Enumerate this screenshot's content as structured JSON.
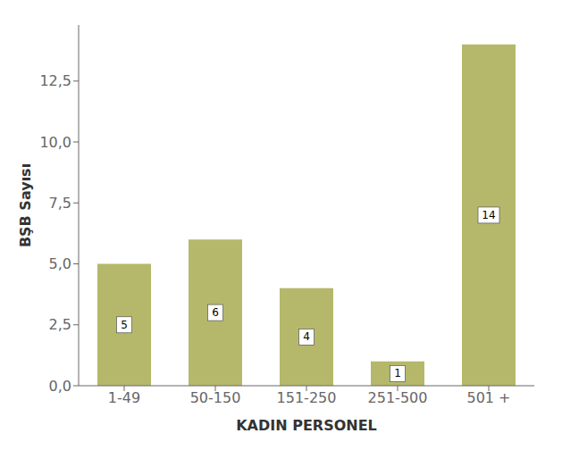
{
  "chart_data": {
    "type": "bar",
    "categories": [
      "1-49",
      "50-150",
      "151-250",
      "251-500",
      "501 +"
    ],
    "values": [
      5,
      6,
      4,
      1,
      14
    ],
    "color": "#b5b86a",
    "xlabel": "KADIN PERSONEL",
    "ylabel": "BŞB Sayısı",
    "ylim": [
      0,
      14.8
    ],
    "yticks": [
      {
        "value": 0.0,
        "label": "0,0"
      },
      {
        "value": 2.5,
        "label": "2,5"
      },
      {
        "value": 5.0,
        "label": "5,0"
      },
      {
        "value": 7.5,
        "label": "7,5"
      },
      {
        "value": 10.0,
        "label": "10,0"
      },
      {
        "value": 12.5,
        "label": "12,5"
      }
    ],
    "grid": false,
    "data_labels": true
  }
}
